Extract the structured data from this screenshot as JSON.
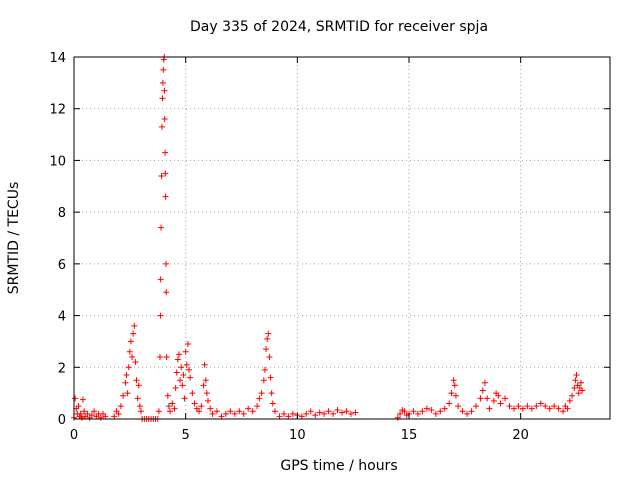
{
  "chart_data": {
    "type": "scatter",
    "title": "Day 335 of 2024, SRMTID for receiver spja",
    "xlabel": "GPS time / hours",
    "ylabel": "SRMTID / TECUs",
    "xlim": [
      0,
      24.0
    ],
    "ylim": [
      0,
      14
    ],
    "xticks": [
      0,
      5,
      10,
      15,
      20
    ],
    "yticks": [
      0,
      2,
      4,
      6,
      8,
      10,
      12,
      14
    ],
    "grid": true,
    "marker": "plus",
    "color": "#ff0000",
    "series": [
      {
        "name": "SRMTID",
        "points": [
          [
            0.0,
            0.05
          ],
          [
            0.05,
            0.8
          ],
          [
            0.1,
            0.4
          ],
          [
            0.15,
            0.2
          ],
          [
            0.2,
            0.5
          ],
          [
            0.25,
            0.1
          ],
          [
            0.3,
            0.2
          ],
          [
            0.35,
            0.05
          ],
          [
            0.4,
            0.75
          ],
          [
            0.45,
            0.3
          ],
          [
            0.5,
            0.1
          ],
          [
            0.6,
            0.2
          ],
          [
            0.7,
            0.05
          ],
          [
            0.8,
            0.15
          ],
          [
            0.9,
            0.3
          ],
          [
            1.0,
            0.1
          ],
          [
            1.1,
            0.2
          ],
          [
            1.2,
            0.05
          ],
          [
            1.3,
            0.2
          ],
          [
            1.4,
            0.1
          ],
          [
            1.8,
            0.1
          ],
          [
            1.9,
            0.3
          ],
          [
            2.0,
            0.2
          ],
          [
            2.1,
            0.5
          ],
          [
            2.2,
            0.9
          ],
          [
            2.3,
            1.4
          ],
          [
            2.35,
            1.7
          ],
          [
            2.4,
            1.0
          ],
          [
            2.45,
            2.0
          ],
          [
            2.5,
            2.6
          ],
          [
            2.55,
            3.0
          ],
          [
            2.6,
            2.4
          ],
          [
            2.65,
            3.3
          ],
          [
            2.7,
            3.6
          ],
          [
            2.75,
            2.2
          ],
          [
            2.8,
            1.5
          ],
          [
            2.85,
            0.8
          ],
          [
            2.9,
            1.3
          ],
          [
            2.95,
            0.5
          ],
          [
            3.0,
            0.3
          ],
          [
            3.05,
            0.0
          ],
          [
            3.15,
            0.0
          ],
          [
            3.25,
            0.0
          ],
          [
            3.35,
            0.0
          ],
          [
            3.45,
            0.0
          ],
          [
            3.55,
            0.0
          ],
          [
            3.65,
            0.0
          ],
          [
            3.75,
            0.0
          ],
          [
            3.8,
            0.3
          ],
          [
            3.85,
            2.4
          ],
          [
            3.87,
            4.0
          ],
          [
            3.88,
            5.4
          ],
          [
            3.9,
            7.4
          ],
          [
            3.92,
            9.4
          ],
          [
            3.94,
            11.3
          ],
          [
            3.96,
            12.4
          ],
          [
            3.98,
            13.0
          ],
          [
            4.0,
            13.5
          ],
          [
            4.02,
            13.9
          ],
          [
            4.04,
            14.0
          ],
          [
            4.05,
            12.7
          ],
          [
            4.06,
            11.6
          ],
          [
            4.08,
            10.3
          ],
          [
            4.09,
            9.5
          ],
          [
            4.1,
            8.6
          ],
          [
            4.12,
            6.0
          ],
          [
            4.13,
            4.9
          ],
          [
            4.15,
            2.4
          ],
          [
            4.2,
            0.9
          ],
          [
            4.25,
            0.5
          ],
          [
            4.3,
            0.3
          ],
          [
            4.4,
            0.6
          ],
          [
            4.5,
            0.4
          ],
          [
            4.55,
            1.2
          ],
          [
            4.6,
            1.8
          ],
          [
            4.65,
            2.3
          ],
          [
            4.7,
            2.5
          ],
          [
            4.75,
            1.5
          ],
          [
            4.8,
            2.0
          ],
          [
            4.85,
            1.3
          ],
          [
            4.9,
            1.7
          ],
          [
            4.95,
            0.8
          ],
          [
            5.0,
            2.6
          ],
          [
            5.05,
            2.1
          ],
          [
            5.1,
            2.9
          ],
          [
            5.15,
            1.9
          ],
          [
            5.2,
            1.6
          ],
          [
            5.3,
            1.0
          ],
          [
            5.4,
            0.6
          ],
          [
            5.5,
            0.4
          ],
          [
            5.6,
            0.3
          ],
          [
            5.7,
            0.5
          ],
          [
            5.8,
            1.3
          ],
          [
            5.85,
            2.1
          ],
          [
            5.9,
            1.5
          ],
          [
            5.95,
            1.0
          ],
          [
            6.0,
            0.7
          ],
          [
            6.1,
            0.4
          ],
          [
            6.2,
            0.2
          ],
          [
            6.4,
            0.3
          ],
          [
            6.6,
            0.1
          ],
          [
            6.8,
            0.2
          ],
          [
            7.0,
            0.3
          ],
          [
            7.2,
            0.2
          ],
          [
            7.4,
            0.3
          ],
          [
            7.6,
            0.2
          ],
          [
            7.8,
            0.4
          ],
          [
            8.0,
            0.3
          ],
          [
            8.2,
            0.5
          ],
          [
            8.3,
            0.8
          ],
          [
            8.4,
            1.0
          ],
          [
            8.5,
            1.5
          ],
          [
            8.55,
            1.9
          ],
          [
            8.6,
            2.7
          ],
          [
            8.65,
            3.1
          ],
          [
            8.7,
            3.3
          ],
          [
            8.75,
            2.4
          ],
          [
            8.8,
            1.6
          ],
          [
            8.85,
            1.0
          ],
          [
            8.9,
            0.6
          ],
          [
            9.0,
            0.3
          ],
          [
            9.2,
            0.1
          ],
          [
            9.4,
            0.2
          ],
          [
            9.6,
            0.1
          ],
          [
            9.8,
            0.2
          ],
          [
            10.0,
            0.15
          ],
          [
            10.2,
            0.1
          ],
          [
            10.4,
            0.2
          ],
          [
            10.6,
            0.3
          ],
          [
            10.8,
            0.15
          ],
          [
            11.0,
            0.25
          ],
          [
            11.2,
            0.2
          ],
          [
            11.4,
            0.3
          ],
          [
            11.6,
            0.2
          ],
          [
            11.8,
            0.35
          ],
          [
            12.0,
            0.25
          ],
          [
            12.2,
            0.3
          ],
          [
            12.4,
            0.2
          ],
          [
            12.6,
            0.25
          ],
          [
            14.5,
            0.05
          ],
          [
            14.6,
            0.2
          ],
          [
            14.7,
            0.35
          ],
          [
            14.8,
            0.3
          ],
          [
            14.9,
            0.15
          ],
          [
            15.0,
            0.2
          ],
          [
            15.2,
            0.3
          ],
          [
            15.4,
            0.2
          ],
          [
            15.6,
            0.3
          ],
          [
            15.8,
            0.4
          ],
          [
            16.0,
            0.35
          ],
          [
            16.2,
            0.2
          ],
          [
            16.4,
            0.3
          ],
          [
            16.6,
            0.4
          ],
          [
            16.8,
            0.6
          ],
          [
            16.9,
            1.0
          ],
          [
            17.0,
            1.5
          ],
          [
            17.05,
            1.3
          ],
          [
            17.1,
            0.9
          ],
          [
            17.2,
            0.5
          ],
          [
            17.4,
            0.3
          ],
          [
            17.6,
            0.2
          ],
          [
            17.8,
            0.3
          ],
          [
            18.0,
            0.5
          ],
          [
            18.2,
            0.8
          ],
          [
            18.3,
            1.1
          ],
          [
            18.4,
            1.4
          ],
          [
            18.5,
            0.8
          ],
          [
            18.6,
            0.4
          ],
          [
            18.8,
            0.7
          ],
          [
            18.9,
            1.0
          ],
          [
            19.0,
            0.9
          ],
          [
            19.1,
            0.6
          ],
          [
            19.3,
            0.8
          ],
          [
            19.5,
            0.5
          ],
          [
            19.7,
            0.4
          ],
          [
            19.9,
            0.5
          ],
          [
            20.1,
            0.4
          ],
          [
            20.3,
            0.5
          ],
          [
            20.5,
            0.4
          ],
          [
            20.7,
            0.5
          ],
          [
            20.9,
            0.6
          ],
          [
            21.1,
            0.5
          ],
          [
            21.3,
            0.4
          ],
          [
            21.5,
            0.5
          ],
          [
            21.7,
            0.4
          ],
          [
            21.9,
            0.3
          ],
          [
            22.0,
            0.5
          ],
          [
            22.1,
            0.4
          ],
          [
            22.2,
            0.7
          ],
          [
            22.3,
            0.9
          ],
          [
            22.4,
            1.2
          ],
          [
            22.45,
            1.5
          ],
          [
            22.5,
            1.7
          ],
          [
            22.55,
            1.3
          ],
          [
            22.6,
            1.0
          ],
          [
            22.65,
            1.2
          ],
          [
            22.7,
            1.4
          ],
          [
            22.75,
            1.1
          ]
        ]
      }
    ]
  }
}
